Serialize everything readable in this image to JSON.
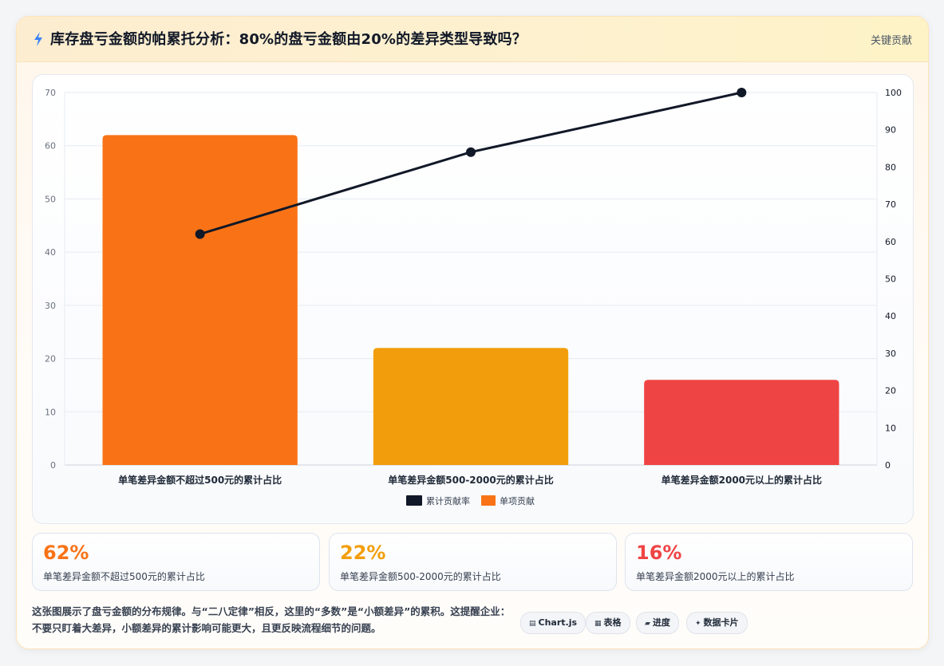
{
  "header": {
    "title": "库存盘亏金额的帕累托分析：80%的盘亏金额由20%的差异类型导致吗？",
    "tag": "关键贡献"
  },
  "chart_data": {
    "type": "bar",
    "categories": [
      "单笔差异金额不超过500元的累计占比",
      "单笔差异金额500-2000元的累计占比",
      "单笔差异金额2000元以上的累计占比"
    ],
    "series": [
      {
        "name": "单项贡献",
        "type": "bar",
        "axis": "left",
        "values": [
          62,
          22,
          16
        ],
        "colors": [
          "#f97316",
          "#f29e0c",
          "#ef4444"
        ]
      },
      {
        "name": "累计贡献率",
        "type": "line",
        "axis": "right",
        "values": [
          62,
          84,
          100
        ],
        "color": "#111827"
      }
    ],
    "y_left": {
      "min": 0,
      "max": 70,
      "ticks": [
        0,
        10,
        20,
        30,
        40,
        50,
        60,
        70
      ]
    },
    "y_right": {
      "min": 0,
      "max": 100,
      "ticks": [
        0,
        10,
        20,
        30,
        40,
        50,
        60,
        70,
        80,
        90,
        100
      ]
    },
    "grid": true,
    "legend_position": "bottom"
  },
  "stats": [
    {
      "value": "62%",
      "label": "单笔差异金额不超过500元的累计占比",
      "color": "#f97316"
    },
    {
      "value": "22%",
      "label": "单笔差异金额500-2000元的累计占比",
      "color": "#f29e0c"
    },
    {
      "value": "16%",
      "label": "单笔差异金额2000元以上的累计占比",
      "color": "#ef4444"
    }
  ],
  "description": "这张图展示了盘亏金额的分布规律。与“二八定律”相反，这里的“多数”是“小额差异”的累积。这提醒企业：不要只盯着大差异，小额差异的累计影响可能更大，且更反映流程细节的问题。",
  "tools": [
    {
      "icon": "▤",
      "label": "Chart.js"
    },
    {
      "icon": "▦",
      "label": "表格"
    },
    {
      "icon": "▰",
      "label": "进度"
    },
    {
      "icon": "✦",
      "label": "数据卡片"
    }
  ]
}
